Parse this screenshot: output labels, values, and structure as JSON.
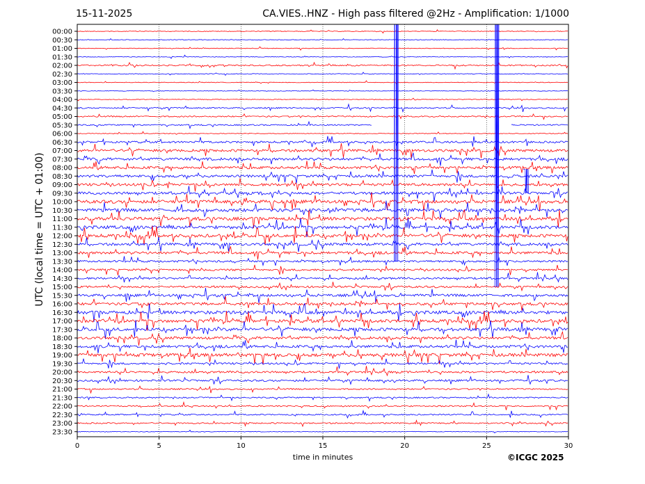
{
  "header": {
    "date": "15-11-2025",
    "title": "CA.VIES..HNZ - High pass filtered @2Hz - Amplification: 1/1000"
  },
  "footer": {
    "copyright": "©ICGC 2025"
  },
  "chart_data": {
    "type": "line",
    "title": "CA.VIES..HNZ - High pass filtered @2Hz - Amplification: 1/1000",
    "xlabel": "time in minutes",
    "ylabel": "UTC (local time = UTC + 01:00)",
    "xlim": [
      0,
      30
    ],
    "xticks": [
      0,
      5,
      10,
      15,
      20,
      25,
      30
    ],
    "vertical_gridlines_at": [
      5,
      10,
      15,
      20,
      25
    ],
    "row_labels": [
      "00:00",
      "00:30",
      "01:00",
      "01:30",
      "02:00",
      "02:30",
      "03:00",
      "03:30",
      "04:00",
      "04:30",
      "05:00",
      "05:30",
      "06:00",
      "06:30",
      "07:00",
      "07:30",
      "08:00",
      "08:30",
      "09:00",
      "09:30",
      "10:00",
      "10:30",
      "11:00",
      "11:30",
      "12:00",
      "12:30",
      "13:00",
      "13:30",
      "14:00",
      "14:30",
      "15:00",
      "15:30",
      "16:00",
      "16:30",
      "17:00",
      "17:30",
      "18:00",
      "18:30",
      "19:00",
      "19:30",
      "20:00",
      "20:30",
      "21:00",
      "21:30",
      "22:00",
      "22:30",
      "23:00",
      "23:30"
    ],
    "row_colors": [
      "#ff0000",
      "#0000ff"
    ],
    "activity_levels": [
      1,
      1,
      1,
      1,
      2,
      1,
      1,
      1,
      1,
      2,
      2,
      2,
      1,
      3,
      4,
      4,
      4,
      4,
      4,
      4,
      5,
      5,
      5,
      5,
      5,
      4,
      4,
      3,
      3,
      3,
      3,
      4,
      4,
      5,
      5,
      5,
      4,
      4,
      5,
      3,
      3,
      3,
      2,
      2,
      2,
      2,
      2,
      1
    ],
    "large_events": [
      {
        "minute": 19.5,
        "from_row": 0,
        "to_row": 27
      },
      {
        "minute": 25.6,
        "from_row": 0,
        "to_row": 30
      },
      {
        "minute": 27.4,
        "from_row": 17,
        "to_row": 19
      }
    ],
    "data_gap": {
      "row": 11,
      "from_minute": 18.0,
      "to_minute": 26.5
    }
  }
}
